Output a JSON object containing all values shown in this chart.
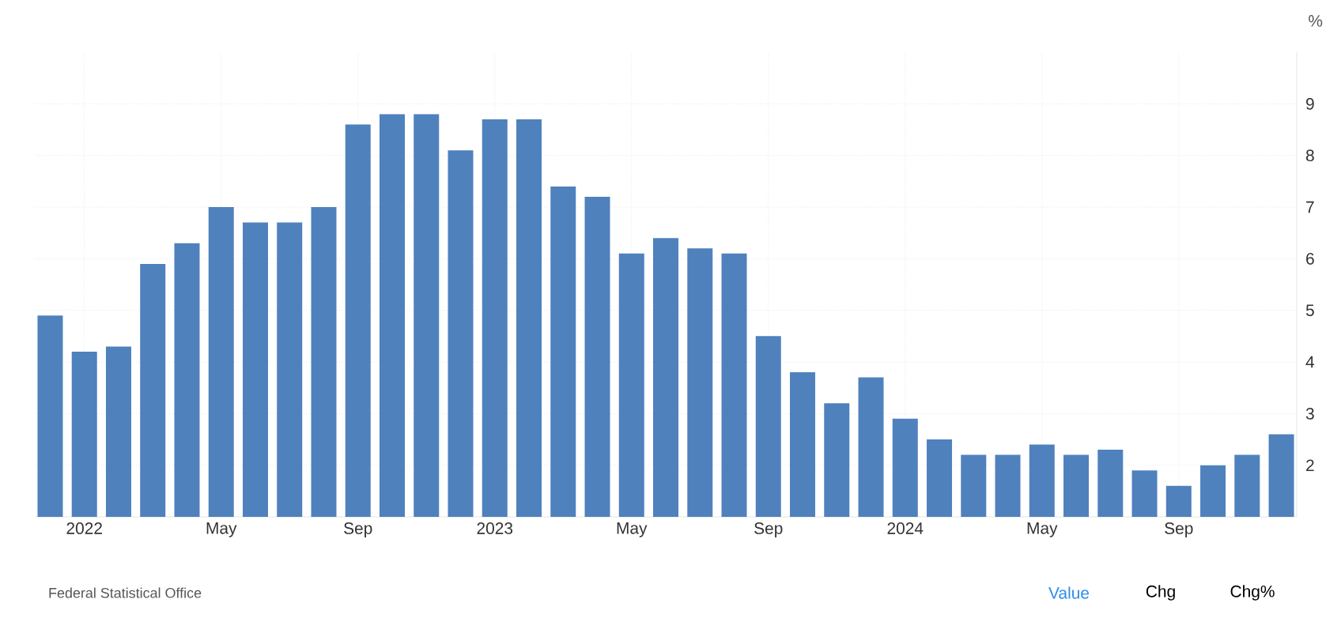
{
  "chart_data": {
    "type": "bar",
    "ylabel": "%",
    "categories": [
      null,
      "2022",
      null,
      null,
      null,
      "May",
      null,
      null,
      null,
      "Sep",
      null,
      null,
      null,
      "2023",
      null,
      null,
      null,
      "May",
      null,
      null,
      null,
      "Sep",
      null,
      null,
      null,
      "2024",
      null,
      null,
      null,
      "May",
      null,
      null,
      null,
      "Sep",
      null,
      null,
      null
    ],
    "values": [
      4.9,
      4.2,
      4.3,
      5.9,
      6.3,
      7.0,
      6.7,
      6.7,
      7.0,
      8.6,
      8.8,
      8.8,
      8.1,
      8.7,
      8.7,
      7.4,
      7.2,
      6.1,
      6.4,
      6.2,
      6.1,
      4.5,
      3.8,
      3.2,
      3.7,
      2.9,
      2.5,
      2.2,
      2.2,
      2.4,
      2.2,
      2.3,
      1.9,
      1.6,
      2.0,
      2.2,
      2.6
    ],
    "color": "#4f81bd",
    "ylim": [
      1,
      10
    ],
    "yticks": [
      2,
      3,
      4,
      5,
      6,
      7,
      8,
      9
    ],
    "grid": true,
    "annotations": [
      "Federal Statistical Office",
      "Value",
      "Chg",
      "Chg%"
    ]
  }
}
